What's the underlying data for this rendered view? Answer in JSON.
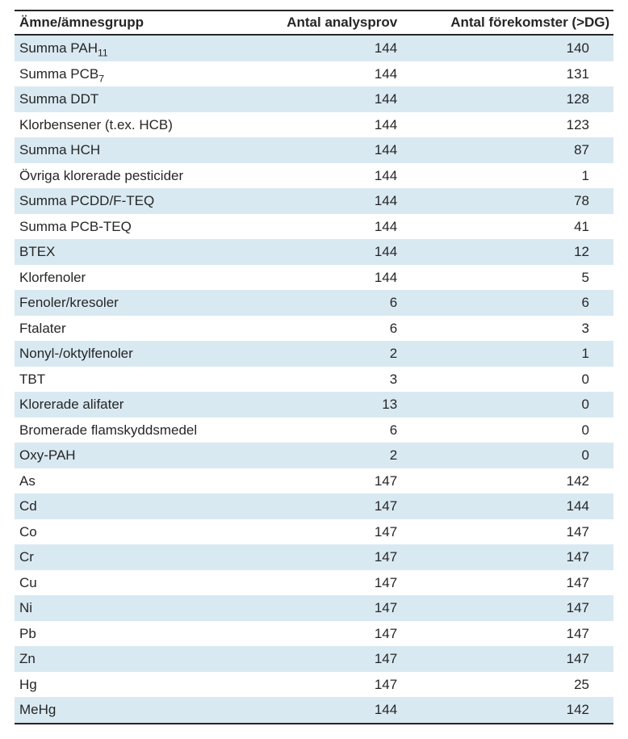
{
  "table": {
    "type": "table",
    "background_color": "#ffffff",
    "stripe_color": "#d9e9f2",
    "border_color": "#262626",
    "text_color": "#262626",
    "font_family": "Segoe UI / Helvetica Neue / Arial",
    "header_fontsize_pt": 13,
    "body_fontsize_pt": 13,
    "column_widths_pct": [
      44,
      28,
      28
    ],
    "column_alignment": [
      "left",
      "right",
      "right"
    ],
    "columns": [
      "Ämne/ämnesgrupp",
      "Antal analysprov",
      "Antal förekomster (>DG)"
    ],
    "rows": [
      {
        "label": "Summa PAH",
        "sub": "11",
        "samples": "144",
        "occurrences": "140"
      },
      {
        "label": "Summa PCB",
        "sub": "7",
        "samples": "144",
        "occurrences": "131"
      },
      {
        "label": "Summa DDT",
        "samples": "144",
        "occurrences": "128"
      },
      {
        "label": "Klorbensener (t.ex. HCB)",
        "samples": "144",
        "occurrences": "123"
      },
      {
        "label": "Summa HCH",
        "samples": "144",
        "occurrences": "87"
      },
      {
        "label": "Övriga klorerade pesticider",
        "samples": "144",
        "occurrences": "1"
      },
      {
        "label": "Summa PCDD/F-TEQ",
        "samples": "144",
        "occurrences": "78"
      },
      {
        "label": "Summa PCB-TEQ",
        "samples": "144",
        "occurrences": "41"
      },
      {
        "label": "BTEX",
        "samples": "144",
        "occurrences": "12"
      },
      {
        "label": "Klorfenoler",
        "samples": "144",
        "occurrences": "5"
      },
      {
        "label": "Fenoler/kresoler",
        "samples": "6",
        "occurrences": "6"
      },
      {
        "label": "Ftalater",
        "samples": "6",
        "occurrences": "3"
      },
      {
        "label": "Nonyl-/oktylfenoler",
        "samples": "2",
        "occurrences": "1"
      },
      {
        "label": "TBT",
        "samples": "3",
        "occurrences": "0"
      },
      {
        "label": "Klorerade alifater",
        "samples": "13",
        "occurrences": "0"
      },
      {
        "label": "Bromerade flamskyddsmedel",
        "samples": "6",
        "occurrences": "0"
      },
      {
        "label": "Oxy-PAH",
        "samples": "2",
        "occurrences": "0"
      },
      {
        "label": "As",
        "samples": "147",
        "occurrences": "142"
      },
      {
        "label": "Cd",
        "samples": "147",
        "occurrences": "144"
      },
      {
        "label": "Co",
        "samples": "147",
        "occurrences": "147"
      },
      {
        "label": "Cr",
        "samples": "147",
        "occurrences": "147"
      },
      {
        "label": "Cu",
        "samples": "147",
        "occurrences": "147"
      },
      {
        "label": "Ni",
        "samples": "147",
        "occurrences": "147"
      },
      {
        "label": "Pb",
        "samples": "147",
        "occurrences": "147"
      },
      {
        "label": "Zn",
        "samples": "147",
        "occurrences": "147"
      },
      {
        "label": "Hg",
        "samples": "147",
        "occurrences": "25"
      },
      {
        "label": "MeHg",
        "samples": "144",
        "occurrences": "142"
      }
    ]
  }
}
